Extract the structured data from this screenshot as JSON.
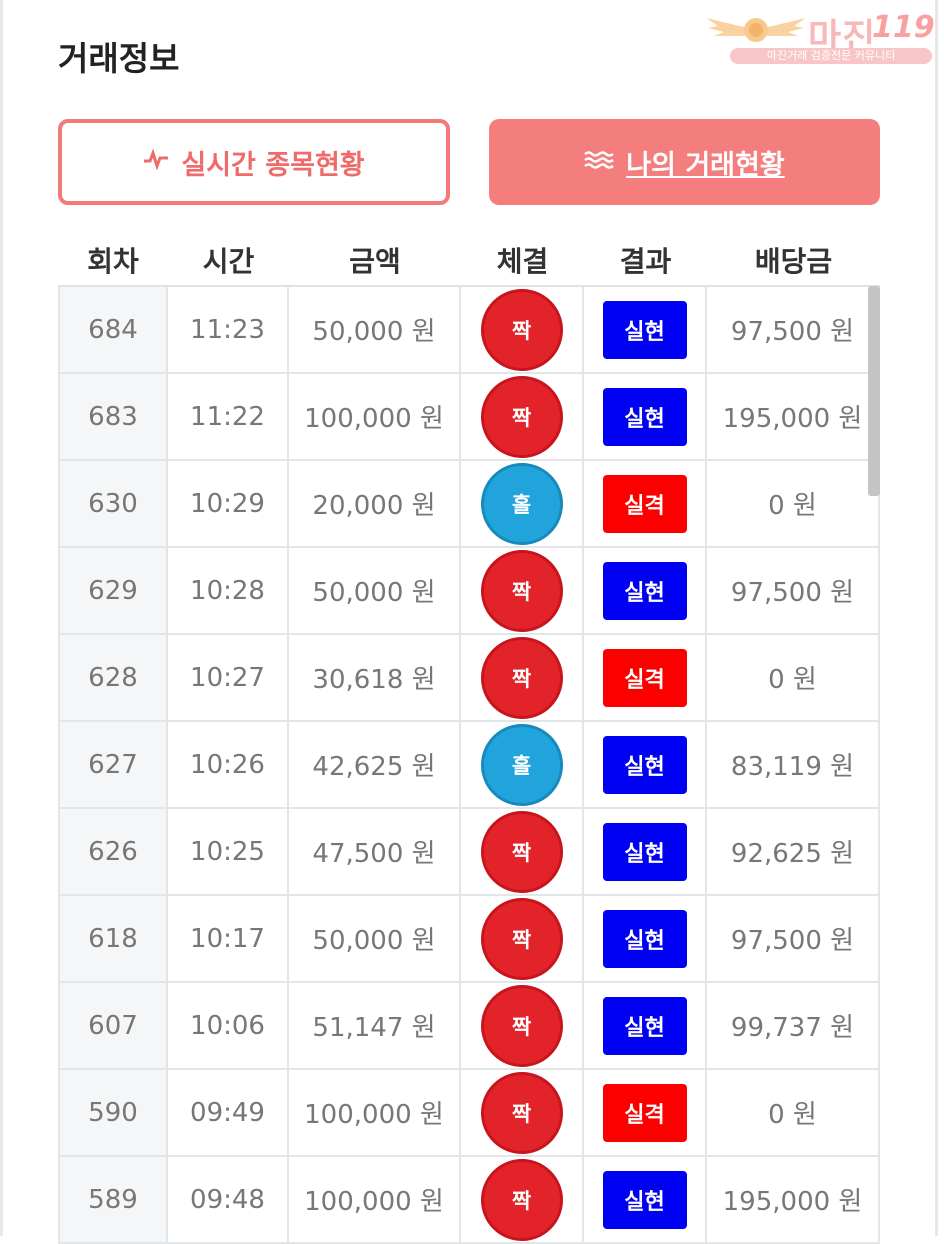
{
  "header": {
    "title": "거래정보"
  },
  "logo": {
    "brand": "마진",
    "number": "119",
    "tagline": "마진거래 검증전문 커뮤니티"
  },
  "buttons": {
    "live": {
      "icon": "pulse-icon",
      "label": "실시간 종목현황"
    },
    "my": {
      "icon": "waves-icon",
      "label": "나의 거래현황"
    }
  },
  "colors": {
    "accent": "#f47e7e",
    "even": "#e2232a",
    "odd": "#21a3dc",
    "win": "#0000f2",
    "lose": "#fc0000"
  },
  "table": {
    "columns": [
      "회차",
      "시간",
      "금액",
      "체결",
      "결과",
      "배당금"
    ],
    "rows": [
      {
        "round": "684",
        "time": "11:23",
        "amount": "50,000 원",
        "pick": "짝",
        "pick_type": "even",
        "result": "실현",
        "result_type": "win",
        "payout": "97,500 원"
      },
      {
        "round": "683",
        "time": "11:22",
        "amount": "100,000 원",
        "pick": "짝",
        "pick_type": "even",
        "result": "실현",
        "result_type": "win",
        "payout": "195,000 원"
      },
      {
        "round": "630",
        "time": "10:29",
        "amount": "20,000 원",
        "pick": "홀",
        "pick_type": "odd",
        "result": "실격",
        "result_type": "lose",
        "payout": "0 원"
      },
      {
        "round": "629",
        "time": "10:28",
        "amount": "50,000 원",
        "pick": "짝",
        "pick_type": "even",
        "result": "실현",
        "result_type": "win",
        "payout": "97,500 원"
      },
      {
        "round": "628",
        "time": "10:27",
        "amount": "30,618 원",
        "pick": "짝",
        "pick_type": "even",
        "result": "실격",
        "result_type": "lose",
        "payout": "0 원"
      },
      {
        "round": "627",
        "time": "10:26",
        "amount": "42,625 원",
        "pick": "홀",
        "pick_type": "odd",
        "result": "실현",
        "result_type": "win",
        "payout": "83,119 원"
      },
      {
        "round": "626",
        "time": "10:25",
        "amount": "47,500 원",
        "pick": "짝",
        "pick_type": "even",
        "result": "실현",
        "result_type": "win",
        "payout": "92,625 원"
      },
      {
        "round": "618",
        "time": "10:17",
        "amount": "50,000 원",
        "pick": "짝",
        "pick_type": "even",
        "result": "실현",
        "result_type": "win",
        "payout": "97,500 원"
      },
      {
        "round": "607",
        "time": "10:06",
        "amount": "51,147 원",
        "pick": "짝",
        "pick_type": "even",
        "result": "실현",
        "result_type": "win",
        "payout": "99,737 원"
      },
      {
        "round": "590",
        "time": "09:49",
        "amount": "100,000 원",
        "pick": "짝",
        "pick_type": "even",
        "result": "실격",
        "result_type": "lose",
        "payout": "0 원"
      },
      {
        "round": "589",
        "time": "09:48",
        "amount": "100,000 원",
        "pick": "짝",
        "pick_type": "even",
        "result": "실현",
        "result_type": "win",
        "payout": "195,000 원"
      }
    ]
  }
}
